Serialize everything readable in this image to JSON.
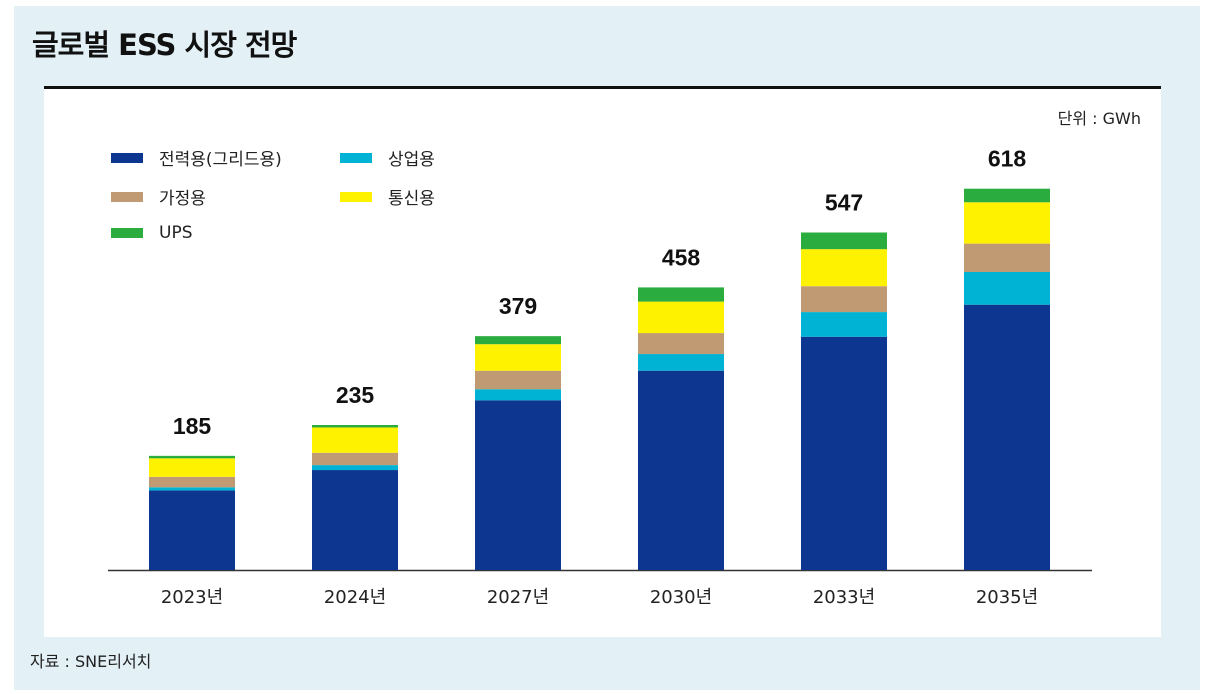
{
  "title": "글로벌 ESS 시장 전망",
  "unit": "단위 : GWh",
  "source": "자료 : SNE리서치",
  "colors": {
    "grid_power": "#0c3690",
    "commercial": "#00b3d4",
    "residential": "#bf9a72",
    "telecom": "#fff200",
    "ups": "#2aac3e"
  },
  "chart_data": {
    "type": "bar",
    "stacked": true,
    "categories": [
      "2023년",
      "2024년",
      "2027년",
      "2030년",
      "2033년",
      "2035년"
    ],
    "totals": [
      "185",
      "235",
      "379",
      "458",
      "547",
      "618"
    ],
    "series": [
      {
        "name": "전력용(그리드용)",
        "color": "#0c3690",
        "values": [
          129,
          162,
          275,
          323,
          378,
          430
        ]
      },
      {
        "name": "상업용",
        "color": "#00b3d4",
        "values": [
          5,
          8,
          18,
          27,
          40,
          53
        ]
      },
      {
        "name": "가정용",
        "color": "#bf9a72",
        "values": [
          17,
          20,
          30,
          34,
          42,
          46
        ]
      },
      {
        "name": "통신용",
        "color": "#fff200",
        "values": [
          30,
          41,
          43,
          51,
          60,
          67
        ]
      },
      {
        "name": "UPS",
        "color": "#2aac3e",
        "values": [
          4,
          4,
          13,
          23,
          27,
          22
        ]
      }
    ],
    "ylim": [
      0,
      700
    ],
    "legend": [
      {
        "label": "전력용(그리드용)",
        "color": "#0c3690"
      },
      {
        "label": "상업용",
        "color": "#00b3d4"
      },
      {
        "label": "가정용",
        "color": "#bf9a72"
      },
      {
        "label": "통신용",
        "color": "#fff200"
      },
      {
        "label": "UPS",
        "color": "#2aac3e"
      }
    ],
    "legend_position": "top-left",
    "grid": false
  }
}
